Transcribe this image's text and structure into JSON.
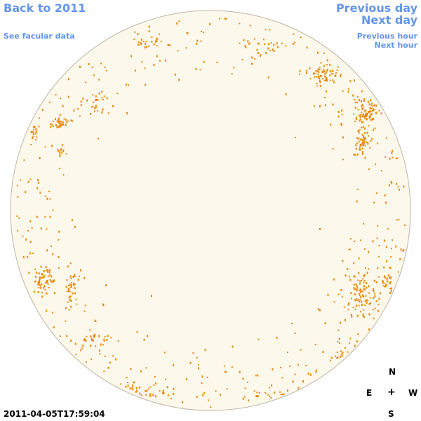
{
  "nav": {
    "back_label": "Back to 2011",
    "facular_label": "See facular data",
    "prev_day_label": "Previous day",
    "next_day_label": "Next day",
    "prev_hour_label": "Previous hour",
    "next_hour_label": "Next hour"
  },
  "compass": {
    "north": "N",
    "east": "E",
    "west": "W",
    "south": "S",
    "center": "+"
  },
  "timestamp": "2011-04-05T17:59:04",
  "colors": {
    "link": "#6495ed",
    "disk_fill": "#fdf8ec",
    "disk_edge": "#bfb5a3",
    "facula": "#e8890c"
  }
}
